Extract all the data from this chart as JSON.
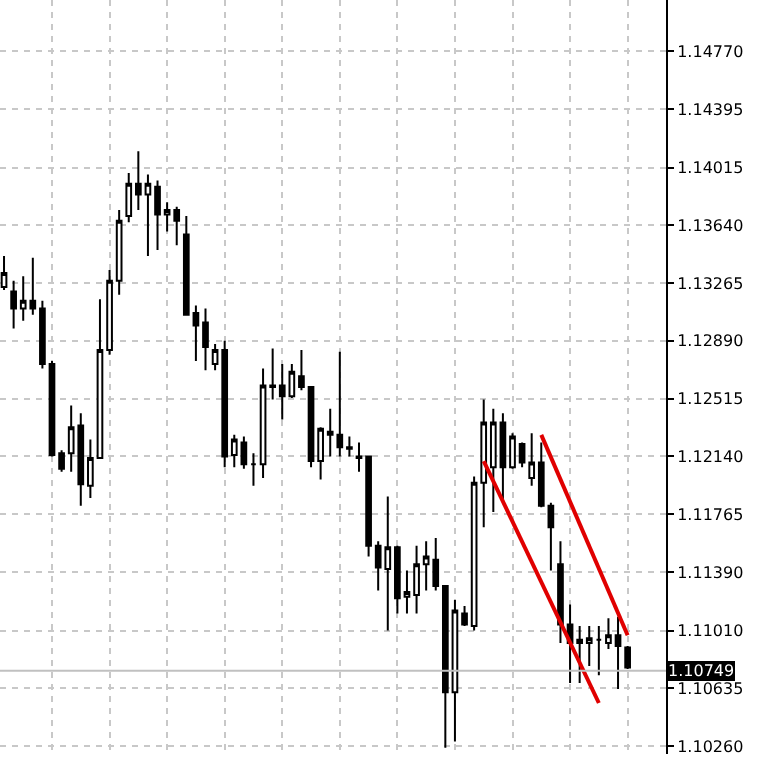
{
  "chart_data": {
    "type": "candlestick",
    "categories": [
      null,
      null,
      null,
      null,
      null,
      null,
      null,
      null,
      null,
      null,
      null,
      null,
      null,
      null,
      null,
      null,
      null,
      null,
      null,
      null,
      null,
      null,
      null,
      null,
      null,
      null,
      null,
      null,
      null,
      null,
      null,
      null,
      null,
      null,
      null,
      null,
      null,
      null,
      null,
      null,
      null,
      null,
      null,
      null,
      null,
      null,
      null,
      null,
      null,
      null,
      null,
      null,
      null,
      null,
      null,
      null,
      null,
      null,
      null,
      null,
      null,
      null,
      null,
      null,
      null,
      null
    ],
    "ohlc": [
      [
        1.1324,
        1.1344,
        1.1322,
        1.1333
      ],
      [
        1.1321,
        1.1328,
        1.1297,
        1.131
      ],
      [
        1.131,
        1.1331,
        1.1302,
        1.1315
      ],
      [
        1.1315,
        1.1343,
        1.1306,
        1.131
      ],
      [
        1.131,
        1.1315,
        1.1271,
        1.1274
      ],
      [
        1.1274,
        1.1276,
        1.1214,
        1.1215
      ],
      [
        1.1216,
        1.1218,
        1.1204,
        1.1206
      ],
      [
        1.1216,
        1.1247,
        1.1204,
        1.1233
      ],
      [
        1.1234,
        1.1242,
        1.1182,
        1.1196
      ],
      [
        1.1195,
        1.1225,
        1.1187,
        1.1213
      ],
      [
        1.1213,
        1.1316,
        1.1213,
        1.1283
      ],
      [
        1.1283,
        1.1335,
        1.128,
        1.1328
      ],
      [
        1.1328,
        1.1374,
        1.1319,
        1.1367
      ],
      [
        1.137,
        1.1398,
        1.1366,
        1.1391
      ],
      [
        1.1391,
        1.1412,
        1.1374,
        1.1384
      ],
      [
        1.1384,
        1.1397,
        1.1344,
        1.1391
      ],
      [
        1.1389,
        1.1393,
        1.1348,
        1.1371
      ],
      [
        1.1371,
        1.1379,
        1.136,
        1.1374
      ],
      [
        1.1374,
        1.1376,
        1.1351,
        1.1367
      ],
      [
        1.1358,
        1.137,
        1.1306,
        1.1306
      ],
      [
        1.1307,
        1.1312,
        1.1276,
        1.1299
      ],
      [
        1.1301,
        1.131,
        1.127,
        1.1285
      ],
      [
        1.1274,
        1.1287,
        1.127,
        1.1283
      ],
      [
        1.1283,
        1.1289,
        1.1207,
        1.1214
      ],
      [
        1.1215,
        1.1228,
        1.1207,
        1.1225
      ],
      [
        1.1223,
        1.1227,
        1.1206,
        1.1209
      ],
      [
        1.1209,
        1.1216,
        1.1195,
        1.1209
      ],
      [
        1.1209,
        1.1271,
        1.12,
        1.126
      ],
      [
        1.1259,
        1.1284,
        1.1251,
        1.126
      ],
      [
        1.126,
        1.1274,
        1.1238,
        1.1253
      ],
      [
        1.1253,
        1.1274,
        1.1252,
        1.1269
      ],
      [
        1.1266,
        1.1283,
        1.1257,
        1.1259
      ],
      [
        1.1259,
        1.1259,
        1.1207,
        1.1211
      ],
      [
        1.1211,
        1.1233,
        1.1199,
        1.1232
      ],
      [
        1.123,
        1.1245,
        1.1214,
        1.1228
      ],
      [
        1.1228,
        1.1282,
        1.1214,
        1.122
      ],
      [
        1.122,
        1.1227,
        1.1214,
        1.1219
      ],
      [
        1.1214,
        1.1223,
        1.1204,
        1.1213
      ],
      [
        1.1214,
        1.1214,
        1.1149,
        1.1156
      ],
      [
        1.1156,
        1.1159,
        1.1127,
        1.1142
      ],
      [
        1.1141,
        1.1188,
        1.1101,
        1.1155
      ],
      [
        1.1155,
        1.1156,
        1.1112,
        1.1122
      ],
      [
        1.1123,
        1.114,
        1.1112,
        1.1126
      ],
      [
        1.1124,
        1.1156,
        1.1112,
        1.1144
      ],
      [
        1.1144,
        1.1159,
        1.1127,
        1.1149
      ],
      [
        1.1147,
        1.1161,
        1.1127,
        1.113
      ],
      [
        1.113,
        1.113,
        1.1025,
        1.1061
      ],
      [
        1.1061,
        1.1121,
        1.1029,
        1.1114
      ],
      [
        1.1112,
        1.1117,
        1.1104,
        1.1105
      ],
      [
        1.1104,
        1.1201,
        1.1101,
        1.1197
      ],
      [
        1.1197,
        1.1251,
        1.1168,
        1.1236
      ],
      [
        1.1207,
        1.1245,
        1.1178,
        1.1236
      ],
      [
        1.1236,
        1.1242,
        1.1184,
        1.1207
      ],
      [
        1.1207,
        1.1229,
        1.1206,
        1.1227
      ],
      [
        1.1222,
        1.1223,
        1.1207,
        1.121
      ],
      [
        1.12,
        1.1229,
        1.1195,
        1.121
      ],
      [
        1.121,
        1.1223,
        1.1181,
        1.1182
      ],
      [
        1.1182,
        1.1184,
        1.114,
        1.1168
      ],
      [
        1.1144,
        1.1159,
        1.1093,
        1.1105
      ],
      [
        1.1105,
        1.1118,
        1.1067,
        1.1093
      ],
      [
        1.1093,
        1.1104,
        1.1067,
        1.1095
      ],
      [
        1.1093,
        1.1104,
        1.1078,
        1.1096
      ],
      [
        1.1095,
        1.1104,
        1.1072,
        1.1095
      ],
      [
        1.1093,
        1.1109,
        1.1089,
        1.1098
      ],
      [
        1.1098,
        1.111,
        1.1063,
        1.1091
      ],
      [
        1.109,
        1.1091,
        1.1076,
        1.1077
      ]
    ],
    "series": [
      {
        "type": "line",
        "color": "#e00000",
        "values": [
          null,
          null,
          null,
          null,
          null,
          null,
          null,
          null,
          null,
          null,
          null,
          null,
          null,
          null,
          null,
          null,
          null,
          null,
          null,
          null,
          null,
          null,
          null,
          null,
          null,
          null,
          null,
          null,
          null,
          null,
          null,
          null,
          null,
          null,
          null,
          null,
          null,
          null,
          null,
          null,
          null,
          null,
          null,
          null,
          null,
          null,
          null,
          null,
          null,
          null,
          1.1211,
          null,
          null,
          null,
          null,
          null,
          null,
          null,
          null,
          null,
          null,
          null,
          1.1054,
          null,
          null,
          null
        ]
      },
      {
        "type": "line",
        "color": "#e00000",
        "values": [
          null,
          null,
          null,
          null,
          null,
          null,
          null,
          null,
          null,
          null,
          null,
          null,
          null,
          null,
          null,
          null,
          null,
          null,
          null,
          null,
          null,
          null,
          null,
          null,
          null,
          null,
          null,
          null,
          null,
          null,
          null,
          null,
          null,
          null,
          null,
          null,
          null,
          null,
          null,
          null,
          null,
          null,
          null,
          null,
          null,
          null,
          null,
          null,
          null,
          null,
          null,
          null,
          null,
          null,
          null,
          null,
          1.1228,
          null,
          null,
          null,
          null,
          null,
          null,
          null,
          null,
          1.1098
        ]
      }
    ],
    "ylim": [
      1.10209,
      1.15102
    ],
    "yticks": [
      {
        "value": 1.1477,
        "label": "1.14770"
      },
      1.14395,
      1.14015,
      {
        "value": 1.1364,
        "label": "1.13640"
      },
      1.13265,
      {
        "value": 1.1289,
        "label": "1.12890"
      },
      1.12515,
      {
        "value": 1.1214,
        "label": "1.12140"
      },
      1.11765,
      {
        "value": 1.1139,
        "label": "1.11390"
      },
      {
        "value": 1.1101,
        "label": "1.11010"
      },
      1.10635,
      {
        "value": 1.1026,
        "label": "1.10260"
      }
    ],
    "ref_lines": [
      {
        "axis": "y",
        "value": 1.10749,
        "label": "1.10749",
        "color": "#c0c0c0"
      }
    ],
    "grid": true,
    "tick_labels": "y"
  }
}
